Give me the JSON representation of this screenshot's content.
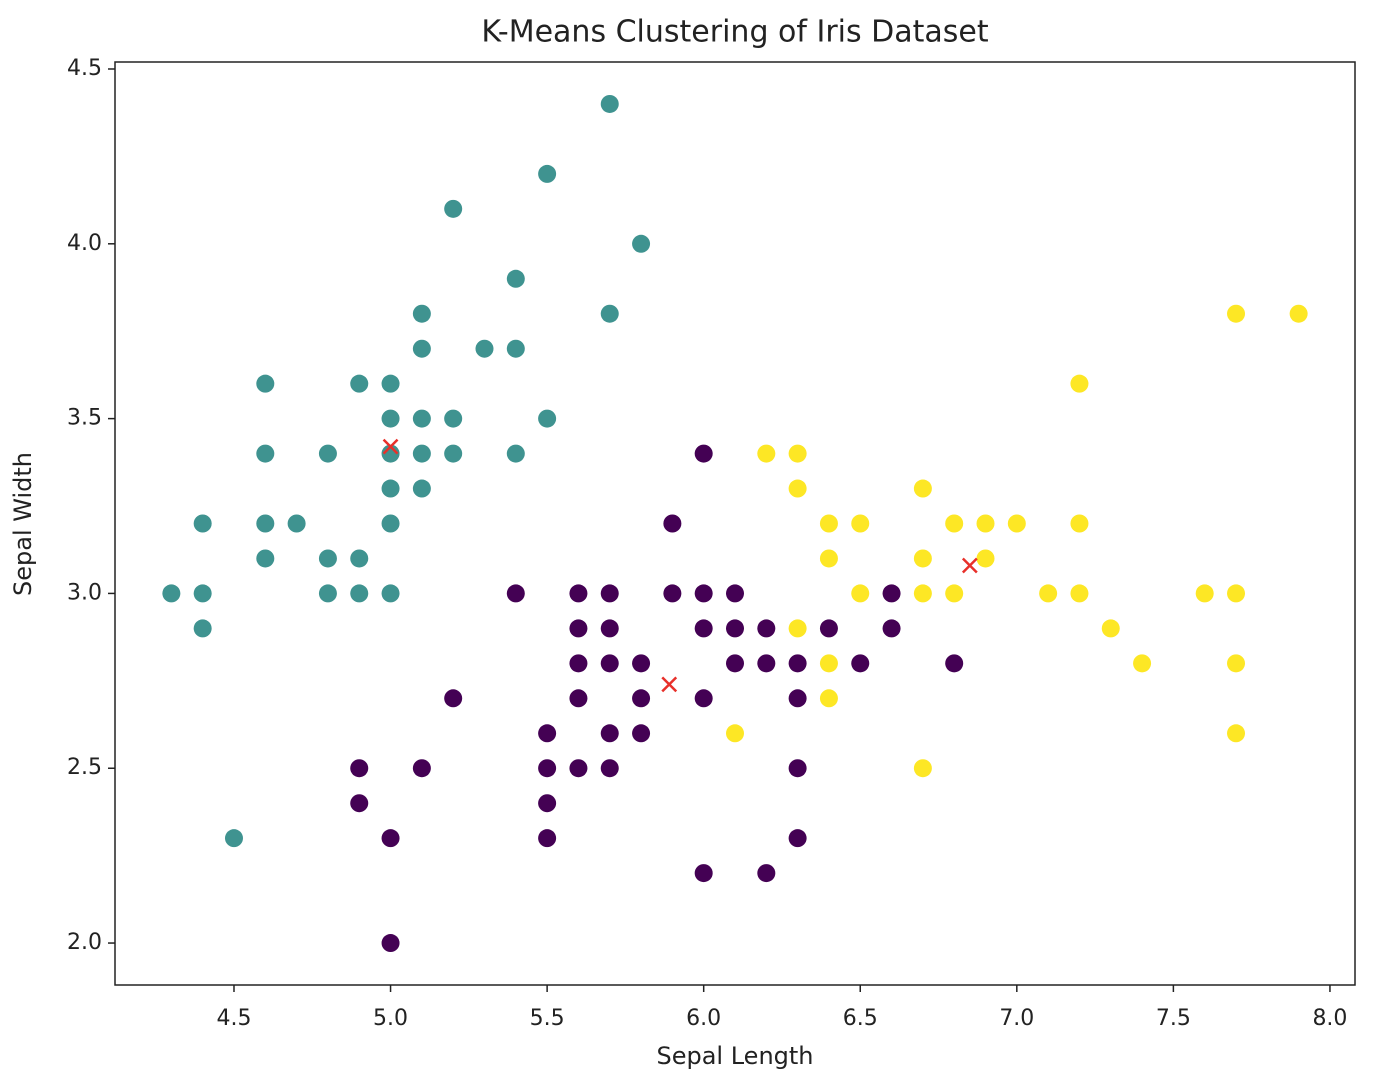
{
  "chart_data": {
    "type": "scatter",
    "title": "K-Means Clustering of Iris Dataset",
    "x_label": "Sepal Length",
    "y_label": "Sepal Width",
    "xlim": [
      4.12,
      8.08
    ],
    "ylim": [
      1.88,
      4.52
    ],
    "xticks": [
      4.5,
      {
        "value": 5,
        "label": "5.0"
      },
      5.5,
      {
        "value": 6,
        "label": "6.0"
      },
      6.5,
      {
        "value": 7,
        "label": "7.0"
      },
      7.5,
      {
        "value": 8,
        "label": "8.0"
      }
    ],
    "yticks": [
      {
        "value": 2,
        "label": "2.0"
      },
      2.5,
      {
        "value": 3,
        "label": "3.0"
      },
      3.5,
      {
        "value": 4,
        "label": "4.0"
      },
      4.5
    ],
    "grid": false,
    "series": [
      {
        "color": "#440154",
        "marker": "circle",
        "x": [
          6.0,
          5.9,
          5.4,
          5.6,
          5.7,
          5.9,
          6.0,
          6.1,
          6.6,
          5.6,
          5.7,
          6.0,
          6.1,
          6.2,
          6.4,
          6.6,
          5.6,
          5.7,
          5.8,
          6.1,
          6.2,
          6.3,
          6.5,
          6.8,
          5.2,
          5.6,
          5.8,
          6.0,
          6.3,
          5.5,
          5.7,
          5.8,
          4.9,
          5.1,
          5.5,
          5.6,
          5.7,
          6.3,
          4.9,
          5.5,
          5.0,
          5.5,
          6.3,
          6.0,
          6.2,
          5.0
        ],
        "values": [
          3.4,
          3.2,
          3.0,
          3.0,
          3.0,
          3.0,
          3.0,
          3.0,
          3.0,
          2.9,
          2.9,
          2.9,
          2.9,
          2.9,
          2.9,
          2.9,
          2.8,
          2.8,
          2.8,
          2.8,
          2.8,
          2.8,
          2.8,
          2.8,
          2.7,
          2.7,
          2.7,
          2.7,
          2.7,
          2.6,
          2.6,
          2.6,
          2.5,
          2.5,
          2.5,
          2.5,
          2.5,
          2.5,
          2.4,
          2.4,
          2.3,
          2.3,
          2.3,
          2.2,
          2.2,
          2.0
        ]
      },
      {
        "color": "#3f9390",
        "marker": "circle",
        "x": [
          5.7,
          5.5,
          5.2,
          5.8,
          5.4,
          5.1,
          5.7,
          5.1,
          5.3,
          5.4,
          4.6,
          4.9,
          5.0,
          5.0,
          5.1,
          5.2,
          5.5,
          4.6,
          4.8,
          5.0,
          5.1,
          5.2,
          5.4,
          5.0,
          5.1,
          4.4,
          4.6,
          4.7,
          5.0,
          4.6,
          4.8,
          4.9,
          4.3,
          4.4,
          4.8,
          4.9,
          5.0,
          4.4,
          4.5
        ],
        "values": [
          4.4,
          4.2,
          4.1,
          4.0,
          3.9,
          3.8,
          3.8,
          3.7,
          3.7,
          3.7,
          3.6,
          3.6,
          3.6,
          3.5,
          3.5,
          3.5,
          3.5,
          3.4,
          3.4,
          3.4,
          3.4,
          3.4,
          3.4,
          3.3,
          3.3,
          3.2,
          3.2,
          3.2,
          3.2,
          3.1,
          3.1,
          3.1,
          3.0,
          3.0,
          3.0,
          3.0,
          3.0,
          2.9,
          2.3
        ]
      },
      {
        "color": "#fde725",
        "marker": "circle",
        "x": [
          7.7,
          7.9,
          7.2,
          6.2,
          6.3,
          6.3,
          6.7,
          6.4,
          6.5,
          6.8,
          6.9,
          7.0,
          7.2,
          6.4,
          6.7,
          6.9,
          6.5,
          6.7,
          6.8,
          7.1,
          7.2,
          7.6,
          7.7,
          6.3,
          7.3,
          6.4,
          7.4,
          7.7,
          6.4,
          6.1,
          7.7,
          6.7
        ],
        "values": [
          3.8,
          3.8,
          3.6,
          3.4,
          3.4,
          3.3,
          3.3,
          3.2,
          3.2,
          3.2,
          3.2,
          3.2,
          3.2,
          3.1,
          3.1,
          3.1,
          3.0,
          3.0,
          3.0,
          3.0,
          3.0,
          3.0,
          3.0,
          2.9,
          2.9,
          2.8,
          2.8,
          2.8,
          2.7,
          2.6,
          2.6,
          2.5
        ]
      },
      {
        "color": "#e8302a",
        "marker": "x",
        "x": [
          5.0,
          5.89,
          6.85
        ],
        "values": [
          3.42,
          2.74,
          3.08
        ]
      }
    ]
  }
}
